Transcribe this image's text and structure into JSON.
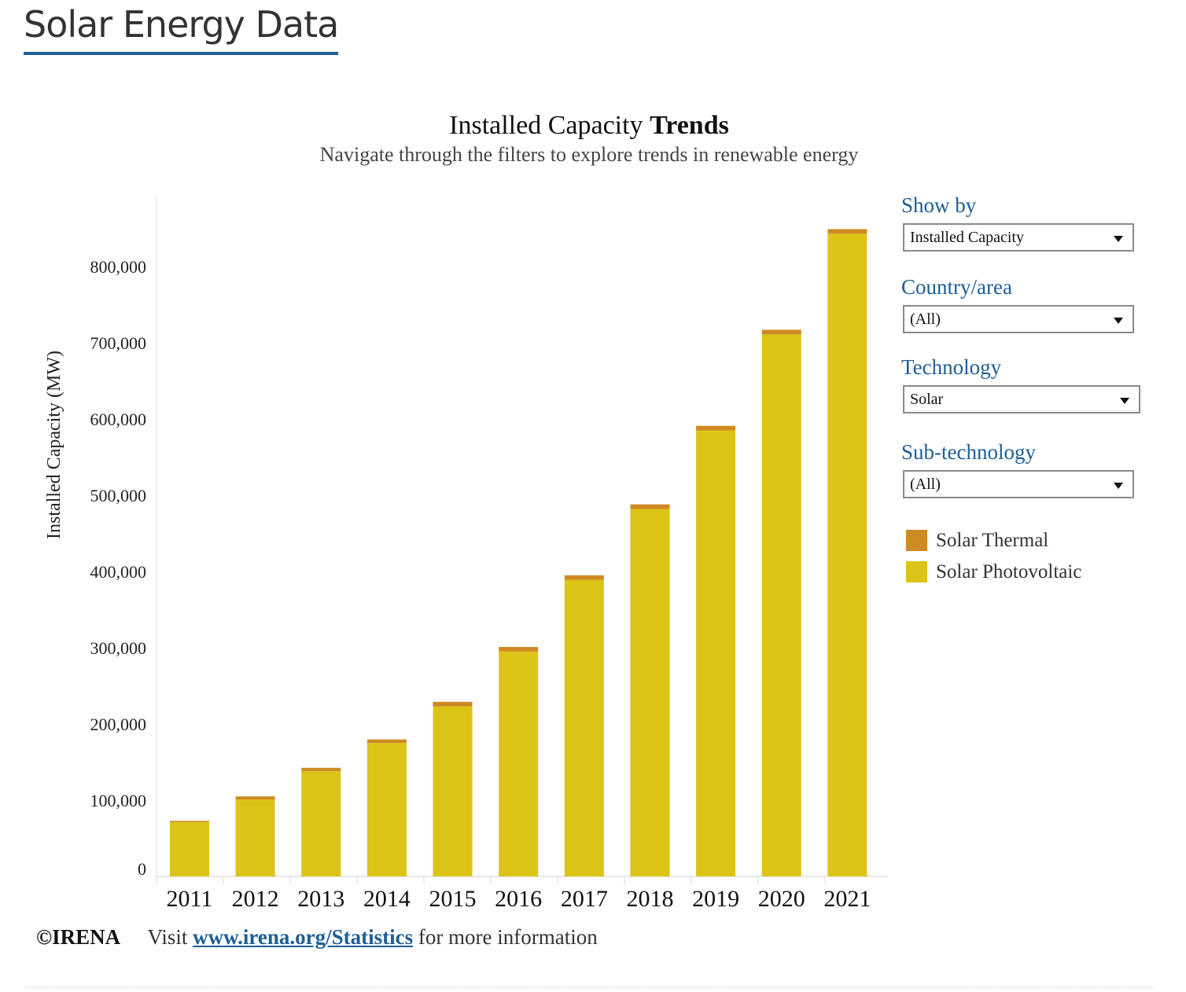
{
  "page": {
    "title": "Solar Energy Data"
  },
  "header": {
    "title_regular": "Installed Capacity",
    "title_bold": "Trends",
    "subtitle": "Navigate through the filters to explore trends in renewable energy"
  },
  "filters": {
    "show_by": {
      "label": "Show by",
      "value": "Installed Capacity"
    },
    "country": {
      "label": "Country/area",
      "value": "(All)"
    },
    "technology": {
      "label": "Technology",
      "value": "Solar"
    },
    "sub_technology": {
      "label": "Sub-technology",
      "value": "(All)"
    }
  },
  "legend": [
    {
      "label": "Solar Thermal",
      "color": "#d08a22"
    },
    {
      "label": "Solar Photovoltaic",
      "color": "#dcc416"
    }
  ],
  "footer": {
    "brand": "©IRENA",
    "visit": "Visit",
    "link": "www.irena.org/Statistics",
    "suffix": "for more information"
  },
  "chart_data": {
    "type": "bar",
    "stacked": true,
    "categories": [
      "2011",
      "2012",
      "2013",
      "2014",
      "2015",
      "2016",
      "2017",
      "2018",
      "2019",
      "2020",
      "2021"
    ],
    "series": [
      {
        "name": "Solar Photovoltaic",
        "color": "#dcc416",
        "values": [
          71500,
          101000,
          138000,
          175000,
          223000,
          295000,
          389000,
          482000,
          585000,
          711000,
          843000
        ]
      },
      {
        "name": "Solar Thermal",
        "color": "#d08a22",
        "values": [
          1500,
          4000,
          4500,
          4700,
          6000,
          6000,
          6000,
          6000,
          6000,
          6000,
          6000
        ]
      }
    ],
    "ylabel": "Installed Capacity (MW)",
    "xlabel": "",
    "ylim": [
      0,
      900000
    ],
    "yticks": [
      0,
      100000,
      200000,
      300000,
      400000,
      500000,
      600000,
      700000,
      800000
    ],
    "ytick_labels": [
      "0",
      "100,000",
      "200,000",
      "300,000",
      "400,000",
      "500,000",
      "600,000",
      "700,000",
      "800,000"
    ],
    "grid": false,
    "legend_position": "right"
  }
}
